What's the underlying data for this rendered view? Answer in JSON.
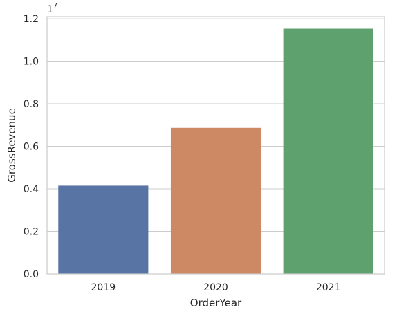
{
  "chart_data": {
    "type": "bar",
    "title": "",
    "xlabel": "OrderYear",
    "ylabel": "GrossRevenue",
    "categories": [
      "2019",
      "2020",
      "2021"
    ],
    "values": [
      4150000,
      6870000,
      11530000
    ],
    "colors": [
      "#5874a5",
      "#cd8864",
      "#5ea16e"
    ],
    "ylim": [
      0,
      12100000
    ],
    "yticks": [
      0,
      2000000,
      4000000,
      6000000,
      8000000,
      10000000,
      12000000
    ],
    "ytick_labels": [
      "0.0",
      "0.2",
      "0.4",
      "0.6",
      "0.8",
      "1.0",
      "1.2"
    ],
    "y_offset_label": "1e7",
    "grid": "horizontal",
    "legend": "none",
    "style": {
      "background": "#ffffff",
      "grid_color": "#cccccc",
      "spine_color": "#cccccc",
      "text_color": "#262626"
    }
  }
}
